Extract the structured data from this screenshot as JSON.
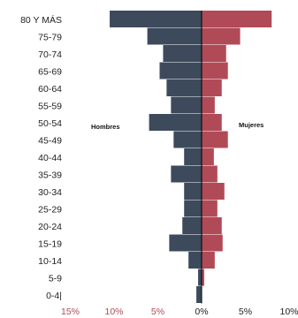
{
  "chart_data": {
    "type": "bar",
    "orientation": "horizontal-diverging",
    "categories": [
      "80 Y MÁS",
      "75-79",
      "70-74",
      "65-69",
      "60-64",
      "55-59",
      "50-54",
      "45-49",
      "40-44",
      "35-39",
      "30-34",
      "25-29",
      "20-24",
      "15-19",
      "10-14",
      "5-9",
      "0-4|"
    ],
    "series": [
      {
        "name": "Hombres",
        "color": "#3c4a5c",
        "values": [
          10.5,
          6.2,
          4.4,
          4.8,
          4.0,
          3.5,
          6.0,
          3.2,
          2.0,
          3.5,
          2.0,
          2.0,
          2.2,
          3.7,
          1.5,
          0.4,
          0.6
        ]
      },
      {
        "name": "Mujeres",
        "color": "#b14a57",
        "values": [
          8.0,
          4.4,
          2.8,
          3.0,
          2.3,
          1.5,
          2.3,
          3.0,
          1.4,
          1.8,
          2.6,
          1.8,
          2.3,
          2.4,
          1.5,
          0.3,
          0.0
        ]
      }
    ],
    "x_ticks": [
      "15%",
      "10%",
      "5%",
      "0%",
      "5%",
      "10%"
    ],
    "x_tick_values": [
      -15,
      -10,
      -5,
      0,
      5,
      10
    ],
    "xlim": [
      -15,
      10
    ],
    "tick_colors": {
      "negative": "#b14a57",
      "positive": "#222222"
    },
    "annotations": [
      "Hombres",
      "Mujeres"
    ],
    "title": "",
    "xlabel": "",
    "ylabel": "",
    "grid": false,
    "legend": "none"
  }
}
